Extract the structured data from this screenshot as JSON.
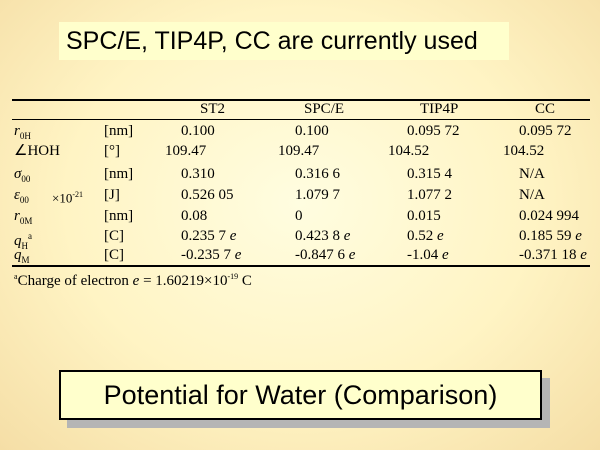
{
  "header_text": "SPC/E, TIP4P, CC are currently used",
  "table": {
    "columns": [
      "ST2",
      "SPC/E",
      "TIP4P",
      "CC"
    ],
    "rows": [
      {
        "symbol": "r",
        "sub": "0H",
        "unit": "[nm]",
        "values": [
          "0.100",
          "0.100",
          "0.095 72",
          "0.095 72"
        ]
      },
      {
        "symbol": "∠HOH",
        "unit": "[°]",
        "values": [
          "109.47",
          "109.47",
          "104.52",
          "104.52"
        ]
      },
      {
        "symbol": "σ",
        "sub": "00",
        "unit": "[nm]",
        "values": [
          "0.310",
          "0.316 6",
          "0.315 4",
          "N/A"
        ]
      },
      {
        "symbol": "ε",
        "sub": "00",
        "multiplier": "×10",
        "multiplier_exp": "-21",
        "unit": "[J]",
        "values": [
          "0.526 05",
          "1.079 7",
          "1.077 2",
          "N/A"
        ]
      },
      {
        "symbol": "r",
        "sub": "0M",
        "unit": "[nm]",
        "values": [
          "0.08",
          "0",
          "0.015",
          "0.024 994"
        ]
      },
      {
        "symbol": "q",
        "sub": "H",
        "sup": "a",
        "unit": "[C]",
        "values": [
          "0.235 7",
          "0.423 8",
          "0.52",
          "0.185 59"
        ],
        "suffix": "e"
      },
      {
        "symbol": "q",
        "sub": "M",
        "unit": "[C]",
        "values": [
          "-0.235 7",
          "-0.847 6",
          "-1.04",
          "-0.371 18"
        ],
        "suffix": "e"
      }
    ]
  },
  "footnote": {
    "mark": "a",
    "text": "Charge of electron ",
    "var": "e",
    "eq": " = 1.60219×10",
    "exp": "-19",
    "unit": " C"
  },
  "footer_title": "Potential for Water (Comparison)"
}
